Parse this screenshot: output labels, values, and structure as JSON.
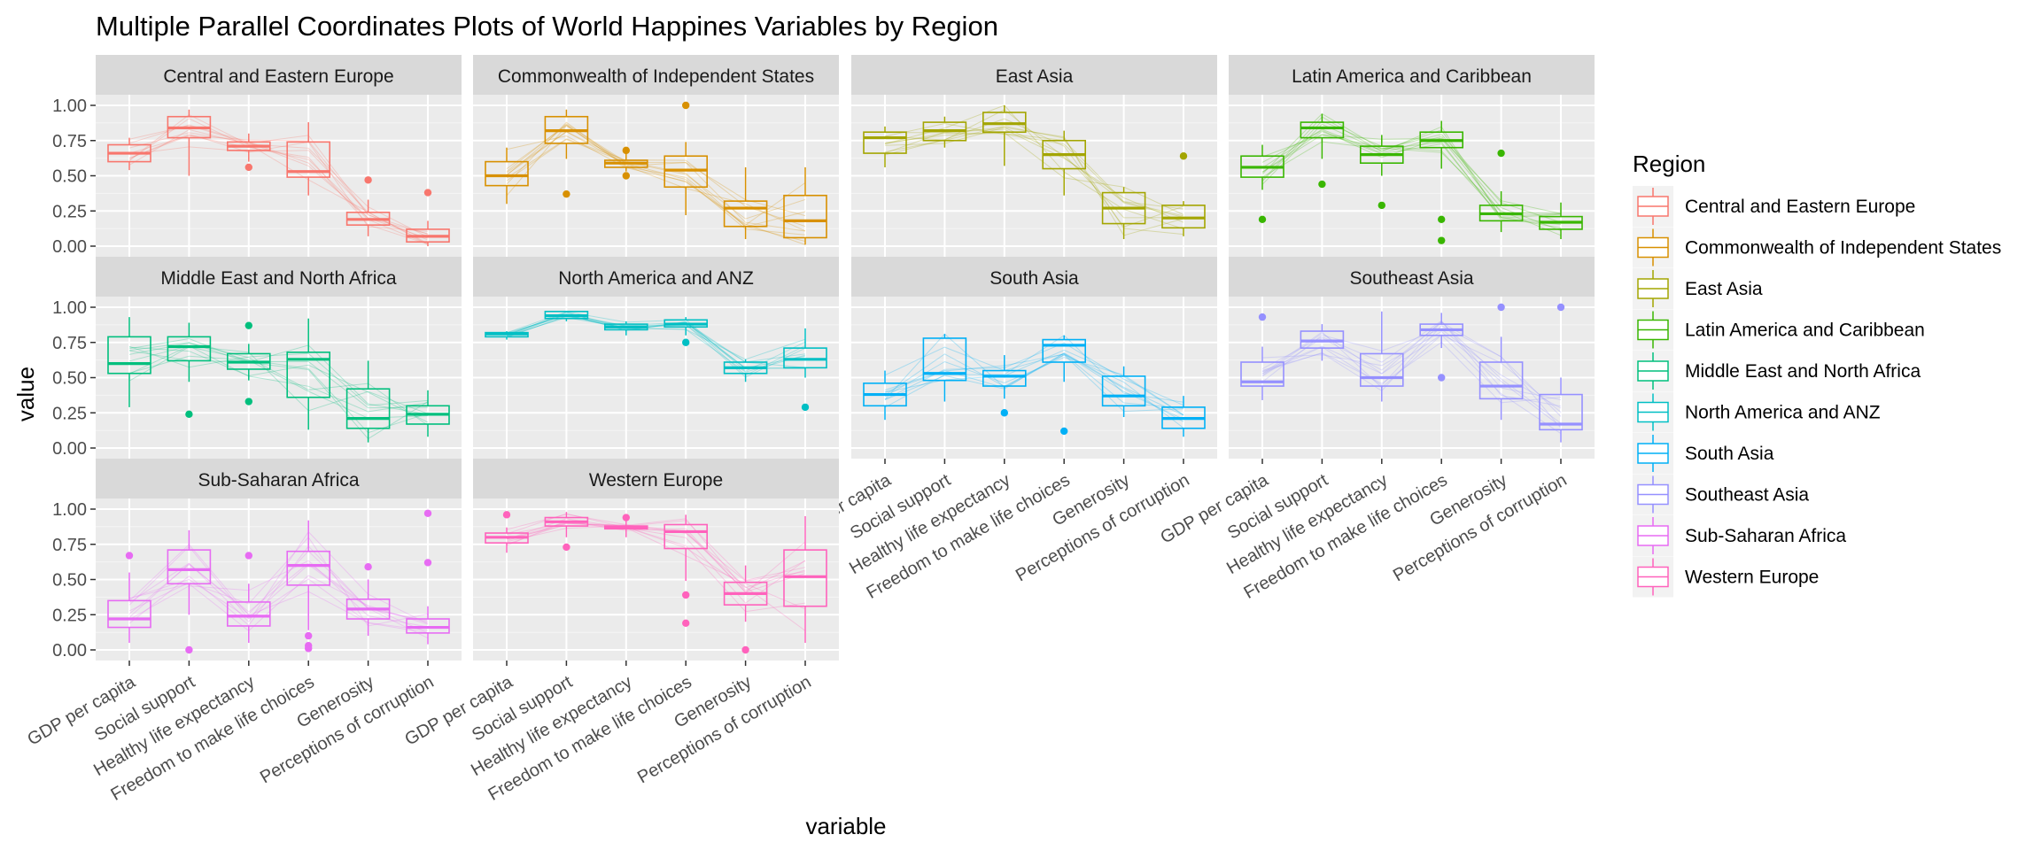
{
  "chart_data": {
    "type": "boxplot",
    "title": "Multiple Parallel Coordinates Plots of World Happines Variables by Region",
    "xlabel": "variable",
    "ylabel": "value",
    "ylim": [
      0,
      1
    ],
    "yticks": [
      "0.00",
      "0.25",
      "0.50",
      "0.75",
      "1.00"
    ],
    "legend_title": "Region",
    "legend_position": "right",
    "grid": true,
    "variables": [
      "GDP per capita",
      "Social support",
      "Healthy life expectancy",
      "Freedom to make life choices",
      "Generosity",
      "Perceptions of corruption"
    ],
    "panels": [
      {
        "name": "Central and Eastern Europe",
        "color": "#F8766D",
        "boxes": [
          {
            "q1": 0.6,
            "median": 0.66,
            "q3": 0.72,
            "lo": 0.54,
            "hi": 0.77,
            "outliers": []
          },
          {
            "q1": 0.77,
            "median": 0.84,
            "q3": 0.92,
            "lo": 0.5,
            "hi": 0.97,
            "outliers": []
          },
          {
            "q1": 0.68,
            "median": 0.71,
            "q3": 0.74,
            "lo": 0.6,
            "hi": 0.8,
            "outliers": [
              0.56
            ]
          },
          {
            "q1": 0.49,
            "median": 0.53,
            "q3": 0.74,
            "lo": 0.36,
            "hi": 0.88,
            "outliers": []
          },
          {
            "q1": 0.15,
            "median": 0.19,
            "q3": 0.24,
            "lo": 0.07,
            "hi": 0.33,
            "outliers": [
              0.47
            ]
          },
          {
            "q1": 0.03,
            "median": 0.07,
            "q3": 0.12,
            "lo": 0.0,
            "hi": 0.18,
            "outliers": [
              0.38
            ]
          }
        ]
      },
      {
        "name": "Commonwealth of Independent States",
        "color": "#D89000",
        "boxes": [
          {
            "q1": 0.43,
            "median": 0.5,
            "q3": 0.6,
            "lo": 0.3,
            "hi": 0.7,
            "outliers": []
          },
          {
            "q1": 0.73,
            "median": 0.82,
            "q3": 0.92,
            "lo": 0.62,
            "hi": 0.97,
            "outliers": [
              0.37
            ]
          },
          {
            "q1": 0.56,
            "median": 0.59,
            "q3": 0.61,
            "lo": 0.53,
            "hi": 0.66,
            "outliers": [
              0.5,
              0.68
            ]
          },
          {
            "q1": 0.42,
            "median": 0.54,
            "q3": 0.64,
            "lo": 0.22,
            "hi": 0.74,
            "outliers": [
              1.0
            ]
          },
          {
            "q1": 0.14,
            "median": 0.27,
            "q3": 0.32,
            "lo": 0.05,
            "hi": 0.56,
            "outliers": []
          },
          {
            "q1": 0.06,
            "median": 0.18,
            "q3": 0.36,
            "lo": 0.01,
            "hi": 0.56,
            "outliers": []
          }
        ]
      },
      {
        "name": "East Asia",
        "color": "#A3A500",
        "boxes": [
          {
            "q1": 0.66,
            "median": 0.77,
            "q3": 0.81,
            "lo": 0.56,
            "hi": 0.85,
            "outliers": []
          },
          {
            "q1": 0.75,
            "median": 0.82,
            "q3": 0.88,
            "lo": 0.7,
            "hi": 0.92,
            "outliers": []
          },
          {
            "q1": 0.81,
            "median": 0.87,
            "q3": 0.95,
            "lo": 0.57,
            "hi": 1.0,
            "outliers": []
          },
          {
            "q1": 0.55,
            "median": 0.65,
            "q3": 0.75,
            "lo": 0.36,
            "hi": 0.82,
            "outliers": []
          },
          {
            "q1": 0.16,
            "median": 0.27,
            "q3": 0.38,
            "lo": 0.05,
            "hi": 0.42,
            "outliers": []
          },
          {
            "q1": 0.13,
            "median": 0.2,
            "q3": 0.29,
            "lo": 0.07,
            "hi": 0.32,
            "outliers": [
              0.64
            ]
          }
        ]
      },
      {
        "name": "Latin America and Caribbean",
        "color": "#39B600",
        "boxes": [
          {
            "q1": 0.49,
            "median": 0.56,
            "q3": 0.64,
            "lo": 0.4,
            "hi": 0.72,
            "outliers": [
              0.19
            ]
          },
          {
            "q1": 0.77,
            "median": 0.84,
            "q3": 0.88,
            "lo": 0.62,
            "hi": 0.94,
            "outliers": [
              0.44
            ]
          },
          {
            "q1": 0.59,
            "median": 0.65,
            "q3": 0.71,
            "lo": 0.5,
            "hi": 0.79,
            "outliers": [
              0.29
            ]
          },
          {
            "q1": 0.7,
            "median": 0.75,
            "q3": 0.81,
            "lo": 0.55,
            "hi": 0.89,
            "outliers": [
              0.04,
              0.19
            ]
          },
          {
            "q1": 0.18,
            "median": 0.23,
            "q3": 0.29,
            "lo": 0.1,
            "hi": 0.39,
            "outliers": [
              0.66
            ]
          },
          {
            "q1": 0.12,
            "median": 0.17,
            "q3": 0.21,
            "lo": 0.05,
            "hi": 0.31,
            "outliers": []
          }
        ]
      },
      {
        "name": "Middle East and North Africa",
        "color": "#00BF7D",
        "boxes": [
          {
            "q1": 0.53,
            "median": 0.6,
            "q3": 0.79,
            "lo": 0.29,
            "hi": 0.93,
            "outliers": []
          },
          {
            "q1": 0.62,
            "median": 0.72,
            "q3": 0.79,
            "lo": 0.47,
            "hi": 0.89,
            "outliers": [
              0.24
            ]
          },
          {
            "q1": 0.56,
            "median": 0.61,
            "q3": 0.67,
            "lo": 0.48,
            "hi": 0.74,
            "outliers": [
              0.33,
              0.87
            ]
          },
          {
            "q1": 0.36,
            "median": 0.63,
            "q3": 0.68,
            "lo": 0.13,
            "hi": 0.92,
            "outliers": []
          },
          {
            "q1": 0.14,
            "median": 0.21,
            "q3": 0.42,
            "lo": 0.04,
            "hi": 0.62,
            "outliers": []
          },
          {
            "q1": 0.17,
            "median": 0.24,
            "q3": 0.3,
            "lo": 0.08,
            "hi": 0.41,
            "outliers": []
          }
        ]
      },
      {
        "name": "North America and ANZ",
        "color": "#00BFC4",
        "boxes": [
          {
            "q1": 0.79,
            "median": 0.81,
            "q3": 0.82,
            "lo": 0.77,
            "hi": 0.83,
            "outliers": []
          },
          {
            "q1": 0.92,
            "median": 0.94,
            "q3": 0.97,
            "lo": 0.9,
            "hi": 0.97,
            "outliers": []
          },
          {
            "q1": 0.84,
            "median": 0.86,
            "q3": 0.88,
            "lo": 0.8,
            "hi": 0.9,
            "outliers": []
          },
          {
            "q1": 0.86,
            "median": 0.88,
            "q3": 0.91,
            "lo": 0.8,
            "hi": 0.93,
            "outliers": [
              0.75
            ]
          },
          {
            "q1": 0.53,
            "median": 0.57,
            "q3": 0.61,
            "lo": 0.47,
            "hi": 0.63,
            "outliers": []
          },
          {
            "q1": 0.57,
            "median": 0.63,
            "q3": 0.71,
            "lo": 0.5,
            "hi": 0.85,
            "outliers": [
              0.29
            ]
          }
        ]
      },
      {
        "name": "South Asia",
        "color": "#00B0F6",
        "boxes": [
          {
            "q1": 0.3,
            "median": 0.38,
            "q3": 0.46,
            "lo": 0.2,
            "hi": 0.55,
            "outliers": []
          },
          {
            "q1": 0.48,
            "median": 0.53,
            "q3": 0.78,
            "lo": 0.33,
            "hi": 0.81,
            "outliers": []
          },
          {
            "q1": 0.44,
            "median": 0.51,
            "q3": 0.55,
            "lo": 0.35,
            "hi": 0.66,
            "outliers": [
              0.25
            ]
          },
          {
            "q1": 0.61,
            "median": 0.73,
            "q3": 0.77,
            "lo": 0.47,
            "hi": 0.8,
            "outliers": [
              0.12
            ]
          },
          {
            "q1": 0.3,
            "median": 0.37,
            "q3": 0.51,
            "lo": 0.22,
            "hi": 0.58,
            "outliers": []
          },
          {
            "q1": 0.14,
            "median": 0.21,
            "q3": 0.29,
            "lo": 0.08,
            "hi": 0.37,
            "outliers": []
          }
        ]
      },
      {
        "name": "Southeast Asia",
        "color": "#9590FF",
        "boxes": [
          {
            "q1": 0.44,
            "median": 0.47,
            "q3": 0.61,
            "lo": 0.34,
            "hi": 0.72,
            "outliers": [
              0.93
            ]
          },
          {
            "q1": 0.71,
            "median": 0.76,
            "q3": 0.83,
            "lo": 0.62,
            "hi": 0.88,
            "outliers": []
          },
          {
            "q1": 0.44,
            "median": 0.5,
            "q3": 0.67,
            "lo": 0.33,
            "hi": 0.97,
            "outliers": []
          },
          {
            "q1": 0.8,
            "median": 0.84,
            "q3": 0.88,
            "lo": 0.71,
            "hi": 0.96,
            "outliers": [
              0.5
            ]
          },
          {
            "q1": 0.35,
            "median": 0.44,
            "q3": 0.61,
            "lo": 0.2,
            "hi": 0.79,
            "outliers": [
              1.0
            ]
          },
          {
            "q1": 0.13,
            "median": 0.17,
            "q3": 0.38,
            "lo": 0.04,
            "hi": 0.5,
            "outliers": [
              1.0
            ]
          }
        ]
      },
      {
        "name": "Sub-Saharan Africa",
        "color": "#E76BF3",
        "boxes": [
          {
            "q1": 0.16,
            "median": 0.22,
            "q3": 0.35,
            "lo": 0.05,
            "hi": 0.55,
            "outliers": [
              0.67
            ]
          },
          {
            "q1": 0.47,
            "median": 0.57,
            "q3": 0.71,
            "lo": 0.25,
            "hi": 0.85,
            "outliers": [
              0.0
            ]
          },
          {
            "q1": 0.17,
            "median": 0.24,
            "q3": 0.34,
            "lo": 0.05,
            "hi": 0.47,
            "outliers": [
              0.67
            ]
          },
          {
            "q1": 0.46,
            "median": 0.6,
            "q3": 0.7,
            "lo": 0.14,
            "hi": 0.92,
            "outliers": [
              0.01,
              0.03,
              0.1
            ]
          },
          {
            "q1": 0.22,
            "median": 0.29,
            "q3": 0.36,
            "lo": 0.1,
            "hi": 0.5,
            "outliers": [
              0.59
            ]
          },
          {
            "q1": 0.12,
            "median": 0.16,
            "q3": 0.22,
            "lo": 0.04,
            "hi": 0.31,
            "outliers": [
              0.62,
              0.97
            ]
          }
        ]
      },
      {
        "name": "Western Europe",
        "color": "#FF62BC",
        "boxes": [
          {
            "q1": 0.76,
            "median": 0.8,
            "q3": 0.83,
            "lo": 0.69,
            "hi": 0.87,
            "outliers": [
              0.96
            ]
          },
          {
            "q1": 0.88,
            "median": 0.91,
            "q3": 0.94,
            "lo": 0.8,
            "hi": 0.98,
            "outliers": [
              0.73
            ]
          },
          {
            "q1": 0.86,
            "median": 0.87,
            "q3": 0.88,
            "lo": 0.8,
            "hi": 0.92,
            "outliers": [
              0.94
            ]
          },
          {
            "q1": 0.72,
            "median": 0.84,
            "q3": 0.89,
            "lo": 0.49,
            "hi": 0.96,
            "outliers": [
              0.19,
              0.39
            ]
          },
          {
            "q1": 0.32,
            "median": 0.4,
            "q3": 0.48,
            "lo": 0.2,
            "hi": 0.6,
            "outliers": [
              0.0
            ]
          },
          {
            "q1": 0.31,
            "median": 0.52,
            "q3": 0.71,
            "lo": 0.05,
            "hi": 0.95,
            "outliers": []
          }
        ]
      }
    ]
  }
}
